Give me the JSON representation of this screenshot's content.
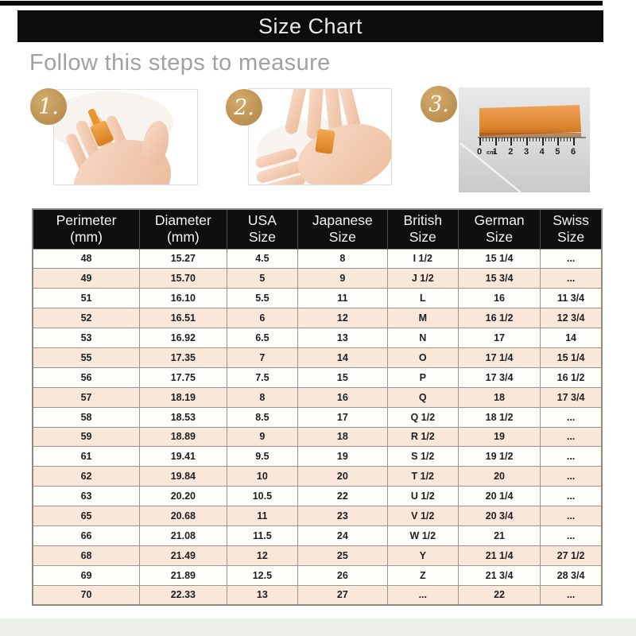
{
  "page": {
    "title": "Size Chart",
    "heading": "Follow this steps to measure"
  },
  "steps": [
    {
      "number": "1.",
      "photo": "hand-with-paper-strip-wrapped-around-finger"
    },
    {
      "number": "2.",
      "photo": "marking-strip-overlap-with-second-hand"
    },
    {
      "number": "3.",
      "photo": "orange-strip-measured-against-cm-ruler"
    }
  ],
  "ruler": {
    "unit": "cm",
    "ticks": [
      "0",
      "1",
      "2",
      "3",
      "4",
      "5",
      "6"
    ]
  },
  "colors": {
    "title_bar_bg": "#0c0c0c",
    "title_text": "#e9e9e9",
    "heading_text": "#a2a19f",
    "badge_gold": "#c09656",
    "strip_orange": "#e08a33",
    "table_header_bg": "#0f0f0f",
    "table_row_alt_bg": "#f9e8d9",
    "table_border": "#9b968b"
  },
  "chart_data": {
    "type": "table",
    "title": "Size Chart",
    "columns": [
      {
        "line1": "Perimeter",
        "line2": "(mm)"
      },
      {
        "line1": "Diameter",
        "line2": "(mm)"
      },
      {
        "line1": "USA",
        "line2": "Size"
      },
      {
        "line1": "Japanese",
        "line2": "Size"
      },
      {
        "line1": "British",
        "line2": "Size"
      },
      {
        "line1": "German",
        "line2": "Size"
      },
      {
        "line1": "Swiss",
        "line2": "Size"
      }
    ],
    "rows": [
      [
        "48",
        "15.27",
        "4.5",
        "8",
        "I 1/2",
        "15 1/4",
        "..."
      ],
      [
        "49",
        "15.70",
        "5",
        "9",
        "J 1/2",
        "15 3/4",
        "..."
      ],
      [
        "51",
        "16.10",
        "5.5",
        "11",
        "L",
        "16",
        "11 3/4"
      ],
      [
        "52",
        "16.51",
        "6",
        "12",
        "M",
        "16 1/2",
        "12 3/4"
      ],
      [
        "53",
        "16.92",
        "6.5",
        "13",
        "N",
        "17",
        "14"
      ],
      [
        "55",
        "17.35",
        "7",
        "14",
        "O",
        "17 1/4",
        "15 1/4"
      ],
      [
        "56",
        "17.75",
        "7.5",
        "15",
        "P",
        "17 3/4",
        "16 1/2"
      ],
      [
        "57",
        "18.19",
        "8",
        "16",
        "Q",
        "18",
        "17 3/4"
      ],
      [
        "58",
        "18.53",
        "8.5",
        "17",
        "Q 1/2",
        "18 1/2",
        "..."
      ],
      [
        "59",
        "18.89",
        "9",
        "18",
        "R 1/2",
        "19",
        "..."
      ],
      [
        "61",
        "19.41",
        "9.5",
        "19",
        "S 1/2",
        "19 1/2",
        "..."
      ],
      [
        "62",
        "19.84",
        "10",
        "20",
        "T 1/2",
        "20",
        "..."
      ],
      [
        "63",
        "20.20",
        "10.5",
        "22",
        "U 1/2",
        "20 1/4",
        "..."
      ],
      [
        "65",
        "20.68",
        "11",
        "23",
        "V 1/2",
        "20 3/4",
        "..."
      ],
      [
        "66",
        "21.08",
        "11.5",
        "24",
        "W 1/2",
        "21",
        "..."
      ],
      [
        "68",
        "21.49",
        "12",
        "25",
        "Y",
        "21 1/4",
        "27 1/2"
      ],
      [
        "69",
        "21.89",
        "12.5",
        "26",
        "Z",
        "21 3/4",
        "28 3/4"
      ],
      [
        "70",
        "22.33",
        "13",
        "27",
        "...",
        "22",
        "..."
      ]
    ]
  }
}
